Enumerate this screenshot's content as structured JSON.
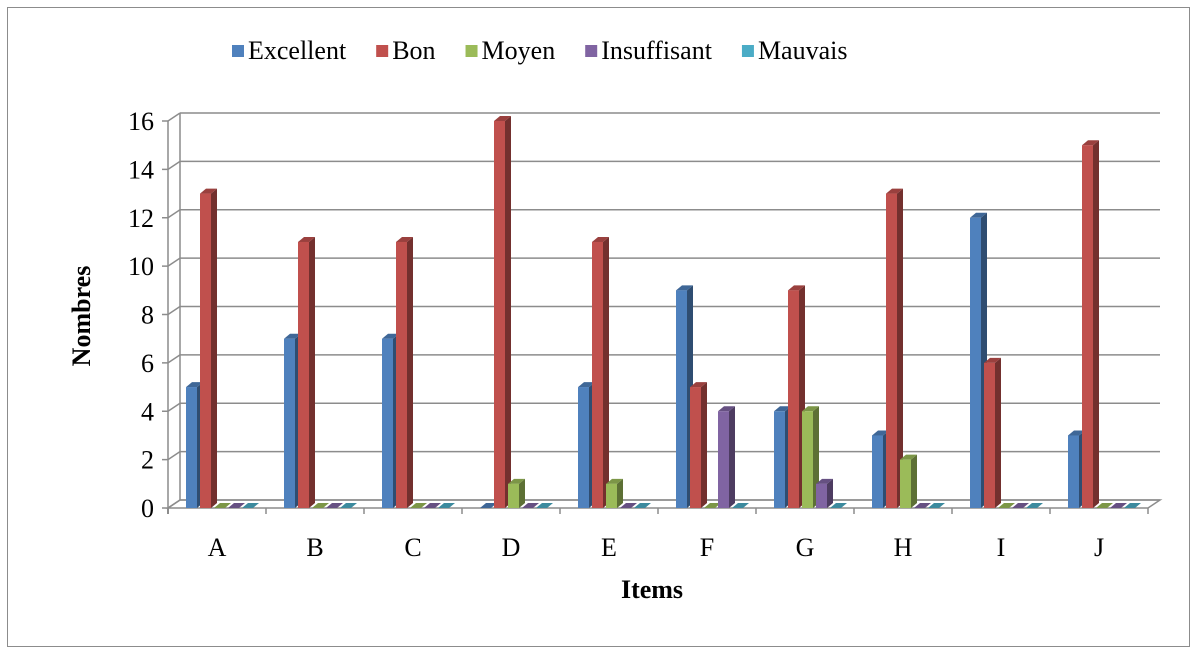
{
  "chart_data": {
    "type": "bar",
    "xlabel": "Items",
    "ylabel": "Nombres",
    "ylim": [
      0,
      16
    ],
    "yticks": [
      0,
      2,
      4,
      6,
      8,
      10,
      12,
      14,
      16
    ],
    "grid": true,
    "legend_position": "top",
    "categories": [
      "A",
      "B",
      "C",
      "D",
      "E",
      "F",
      "G",
      "H",
      "I",
      "J"
    ],
    "series": [
      {
        "name": "Excellent",
        "color": "#4f81bd",
        "values": [
          5,
          7,
          7,
          0,
          5,
          9,
          4,
          3,
          12,
          3
        ]
      },
      {
        "name": "Bon",
        "color": "#c0504d",
        "values": [
          13,
          11,
          11,
          16,
          11,
          5,
          9,
          13,
          6,
          15
        ]
      },
      {
        "name": "Moyen",
        "color": "#9bbb59",
        "values": [
          0,
          0,
          0,
          1,
          1,
          0,
          4,
          2,
          0,
          0
        ]
      },
      {
        "name": "Insuffisant",
        "color": "#8064a2",
        "values": [
          0,
          0,
          0,
          0,
          0,
          4,
          1,
          0,
          0,
          0
        ]
      },
      {
        "name": "Mauvais",
        "color": "#4bacc6",
        "values": [
          0,
          0,
          0,
          0,
          0,
          0,
          0,
          0,
          0,
          0
        ]
      }
    ]
  }
}
